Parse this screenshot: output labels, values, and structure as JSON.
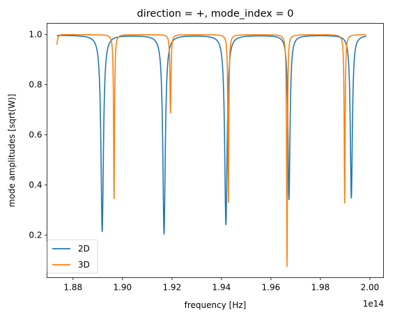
{
  "chart_data": {
    "type": "line",
    "title": "direction = +, mode_index = 0",
    "xlabel": "frequency [Hz]",
    "ylabel": "mode amplitudes [sqrt(W)]",
    "x_offset_text": "1e14",
    "x_unit_scale": 100000000000000.0,
    "xlim": [
      1.8695,
      2.0055
    ],
    "ylim": [
      0.03,
      1.045
    ],
    "xticks": [
      1.88,
      1.9,
      1.92,
      1.94,
      1.96,
      1.98,
      2.0
    ],
    "xtick_labels": [
      "1.88",
      "1.90",
      "1.92",
      "1.94",
      "1.96",
      "1.98",
      "2.00"
    ],
    "yticks": [
      0.2,
      0.4,
      0.6,
      0.8,
      1.0
    ],
    "ytick_labels": [
      "0.2",
      "0.4",
      "0.6",
      "0.8",
      "1.0"
    ],
    "grid": false,
    "legend_position": "lower-left",
    "series": [
      {
        "name": "2D",
        "color": "#1f77b4",
        "x_range": [
          1.8735,
          1.9985
        ],
        "baseline": 0.998,
        "dips": [
          {
            "x": 1.8918,
            "min": 0.215,
            "width": 0.0006
          },
          {
            "x": 1.9168,
            "min": 0.205,
            "width": 0.0006
          },
          {
            "x": 1.9418,
            "min": 0.242,
            "width": 0.0006
          },
          {
            "x": 1.9673,
            "min": 0.342,
            "width": 0.0005
          },
          {
            "x": 1.9925,
            "min": 0.348,
            "width": 0.0005
          }
        ]
      },
      {
        "name": "3D",
        "color": "#ff7f0e",
        "x_range": [
          1.8735,
          1.9985
        ],
        "baseline": 1.0,
        "start_value": 0.96,
        "dips": [
          {
            "x": 1.8966,
            "min": 0.345,
            "width": 0.00022
          },
          {
            "x": 1.9194,
            "min": 0.688,
            "width": 0.00025
          },
          {
            "x": 1.9428,
            "min": 0.33,
            "width": 0.00022
          },
          {
            "x": 1.9665,
            "min": 0.075,
            "width": 0.0002
          },
          {
            "x": 1.9898,
            "min": 0.328,
            "width": 0.00022
          }
        ]
      }
    ]
  }
}
